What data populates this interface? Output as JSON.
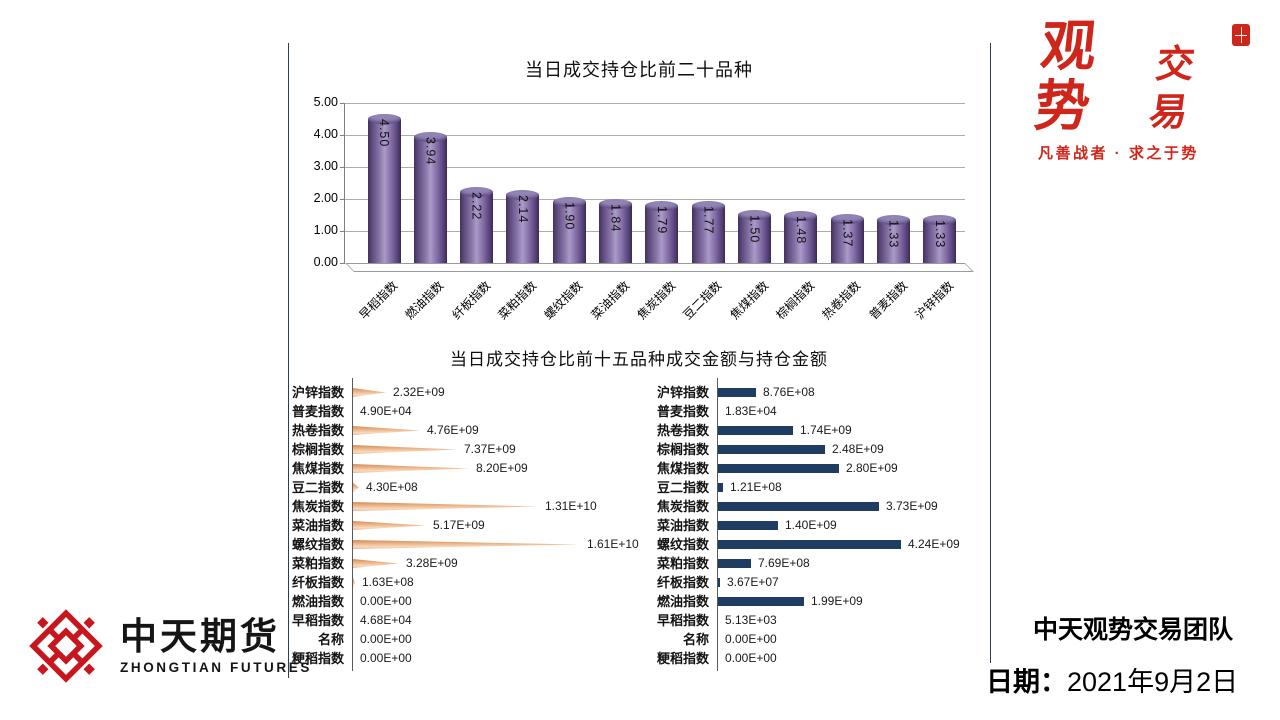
{
  "titles": {
    "top_chart": "当日成交持仓比前二十品种",
    "bottom_charts": "当日成交持仓比前十五品种成交金额与持仓金额"
  },
  "brand_top": {
    "part1": "观势",
    "part2": "交易",
    "tagline": "凡善战者 · 求之于势"
  },
  "brand_bottom": {
    "cn": "中天期货",
    "en": "ZHONGTIAN FUTURES"
  },
  "footer": {
    "team": "中天观势交易团队",
    "date_label": "日期：",
    "date_value": "2021年9月2日"
  },
  "colors": {
    "cylinder_purple": "#7a639c",
    "cone_tan": "#e4a67c",
    "bar_navy": "#1f3c61",
    "brand_red": "#d0251b",
    "logo_red": "#c8161e",
    "frame_line": "#2e3d55",
    "gridline": "#adadad"
  },
  "chart_data": [
    {
      "type": "bar",
      "variant": "3d-cylinder",
      "title": "当日成交持仓比前二十品种",
      "categories": [
        "早稻指数",
        "燃油指数",
        "纤板指数",
        "菜粕指数",
        "螺纹指数",
        "菜油指数",
        "焦炭指数",
        "豆二指数",
        "焦煤指数",
        "棕榈指数",
        "热卷指数",
        "普麦指数",
        "沪锌指数"
      ],
      "values": [
        4.5,
        3.94,
        2.22,
        2.14,
        1.9,
        1.84,
        1.79,
        1.77,
        1.5,
        1.48,
        1.37,
        1.33,
        1.33
      ],
      "value_labels": [
        "4.50",
        "3.94",
        "2.22",
        "2.14",
        "1.90",
        "1.84",
        "1.79",
        "1.77",
        "1.50",
        "1.48",
        "1.37",
        "1.33",
        "1.33"
      ],
      "xlabel": "",
      "ylabel": "",
      "ylim": [
        0,
        5
      ],
      "yticks": [
        "5.00",
        "4.00",
        "3.00",
        "2.00",
        "1.00",
        "0.00"
      ],
      "grid": true,
      "legend": "none"
    },
    {
      "type": "bar",
      "orientation": "horizontal",
      "variant": "cone",
      "panel": "left",
      "categories": [
        "沪锌指数",
        "普麦指数",
        "热卷指数",
        "棕榈指数",
        "焦煤指数",
        "豆二指数",
        "焦炭指数",
        "菜油指数",
        "螺纹指数",
        "菜粕指数",
        "纤板指数",
        "燃油指数",
        "早稻指数",
        "名称",
        "粳稻指数"
      ],
      "values": [
        2320000000.0,
        49000.0,
        4760000000.0,
        7370000000.0,
        8200000000.0,
        430000000.0,
        13100000000.0,
        5170000000.0,
        16100000000.0,
        3280000000.0,
        163000000.0,
        0,
        46800.0,
        0,
        0
      ],
      "value_labels": [
        "2.32E+09",
        "4.90E+04",
        "4.76E+09",
        "7.37E+09",
        "8.20E+09",
        "4.30E+08",
        "1.31E+10",
        "5.17E+09",
        "1.61E+10",
        "3.28E+09",
        "1.63E+08",
        "0.00E+00",
        "4.68E+04",
        "0.00E+00",
        "0.00E+00"
      ],
      "grid": false,
      "legend": "none"
    },
    {
      "type": "bar",
      "orientation": "horizontal",
      "variant": "rect",
      "panel": "right",
      "categories": [
        "沪锌指数",
        "普麦指数",
        "热卷指数",
        "棕榈指数",
        "焦煤指数",
        "豆二指数",
        "焦炭指数",
        "菜油指数",
        "螺纹指数",
        "菜粕指数",
        "纤板指数",
        "燃油指数",
        "早稻指数",
        "名称",
        "粳稻指数"
      ],
      "values": [
        876000000.0,
        18300.0,
        1740000000.0,
        2480000000.0,
        2800000000.0,
        121000000.0,
        3730000000.0,
        1400000000.0,
        4240000000.0,
        769000000.0,
        36700000.0,
        1990000000.0,
        5130.0,
        0,
        0
      ],
      "value_labels": [
        "8.76E+08",
        "1.83E+04",
        "1.74E+09",
        "2.48E+09",
        "2.80E+09",
        "1.21E+08",
        "3.73E+09",
        "1.40E+09",
        "4.24E+09",
        "7.69E+08",
        "3.67E+07",
        "1.99E+09",
        "5.13E+03",
        "0.00E+00",
        "0.00E+00"
      ],
      "grid": false,
      "legend": "none"
    }
  ]
}
